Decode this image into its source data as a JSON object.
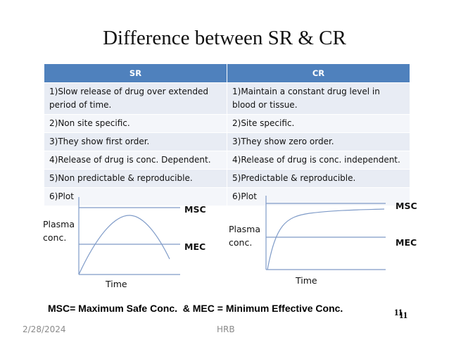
{
  "title": "Difference between SR & CR",
  "table": {
    "header": [
      "SR",
      "CR"
    ],
    "rows": [
      [
        "1)Slow release of drug over extended period of time.",
        "1)Maintain a constant drug level in blood or tissue."
      ],
      [
        "2)Non site specific.",
        "2)Site specific."
      ],
      [
        "3)They show first order.",
        "3)They show zero order."
      ],
      [
        "4)Release of drug is conc. Dependent.",
        "4)Release of drug is conc. independent."
      ],
      [
        "5)Non predictable & reproducible.",
        "5)Predictable & reproducible."
      ],
      [
        "6)Plot",
        "6)Plot"
      ]
    ]
  },
  "plots": [
    {
      "y_label": "Plasma conc.",
      "x_label": "Time",
      "upper_line": "MSC",
      "lower_line": "MEC"
    },
    {
      "y_label": "Plasma conc.",
      "x_label": "Time",
      "upper_line": "MSC",
      "lower_line": "MEC"
    }
  ],
  "footnote": "MSC= Maximum Safe Conc.  & MEC = Minimum Effective Conc.",
  "slide_numbers": [
    "11",
    "11"
  ],
  "footer": {
    "date": "2/28/2024",
    "author": "HRB"
  }
}
